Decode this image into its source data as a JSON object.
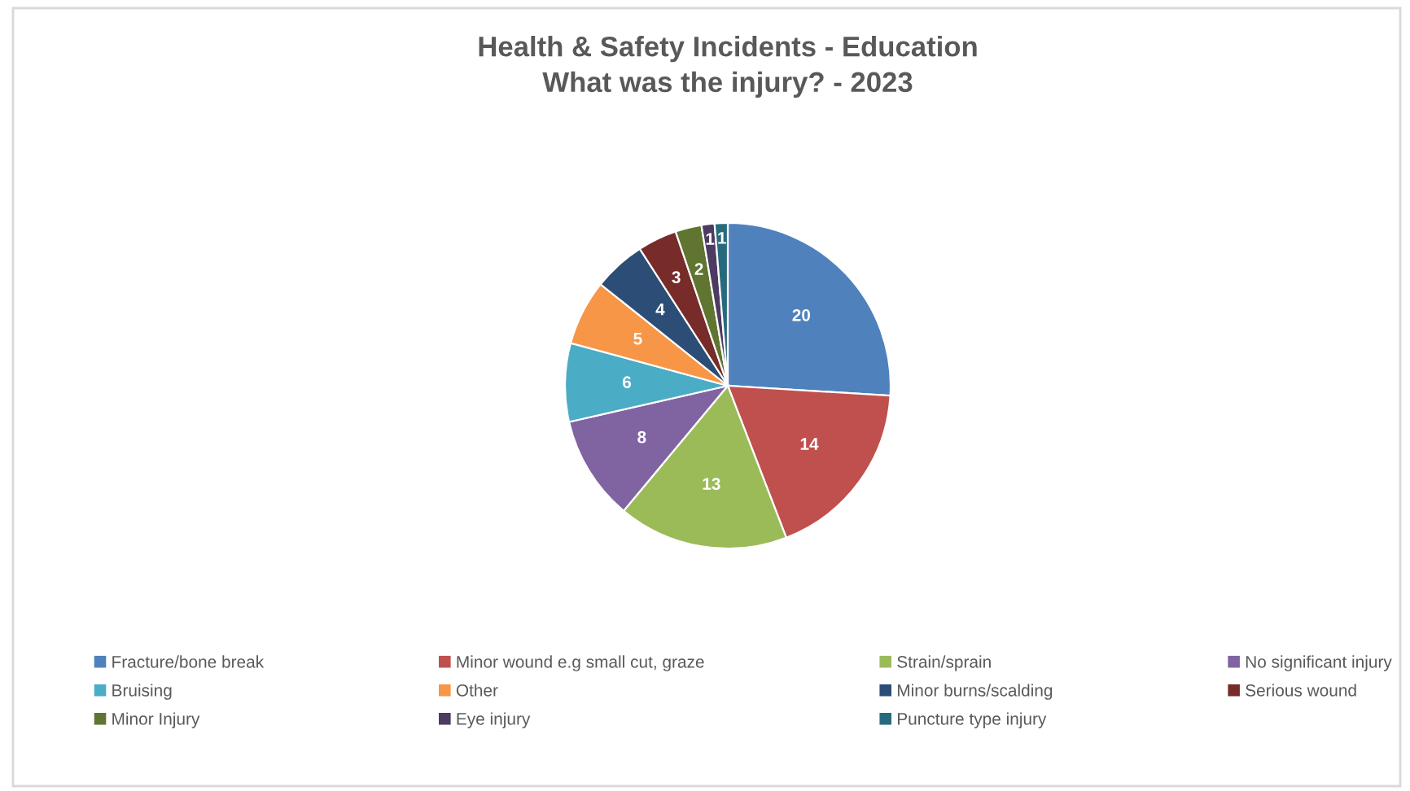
{
  "chart_data": {
    "type": "pie",
    "title": "Health & Safety Incidents - Education\nWhat was the injury? - 2023",
    "categories": [
      "Fracture/bone break",
      "Minor wound e.g small cut, graze",
      "Strain/sprain",
      "No significant injury",
      "Bruising",
      "Other",
      "Minor burns/scalding",
      "Serious wound",
      "Minor Injury",
      "Eye injury",
      "Puncture type injury"
    ],
    "values": [
      20,
      14,
      13,
      8,
      6,
      5,
      4,
      3,
      2,
      1,
      1
    ],
    "colors": [
      "#4f81bd",
      "#c0504d",
      "#9bbb59",
      "#8064a2",
      "#4bacc6",
      "#f79646",
      "#2c4d75",
      "#772c2a",
      "#5f7530",
      "#4d3b62",
      "#276a7c"
    ],
    "data_labels": true,
    "legend": "bottom"
  }
}
